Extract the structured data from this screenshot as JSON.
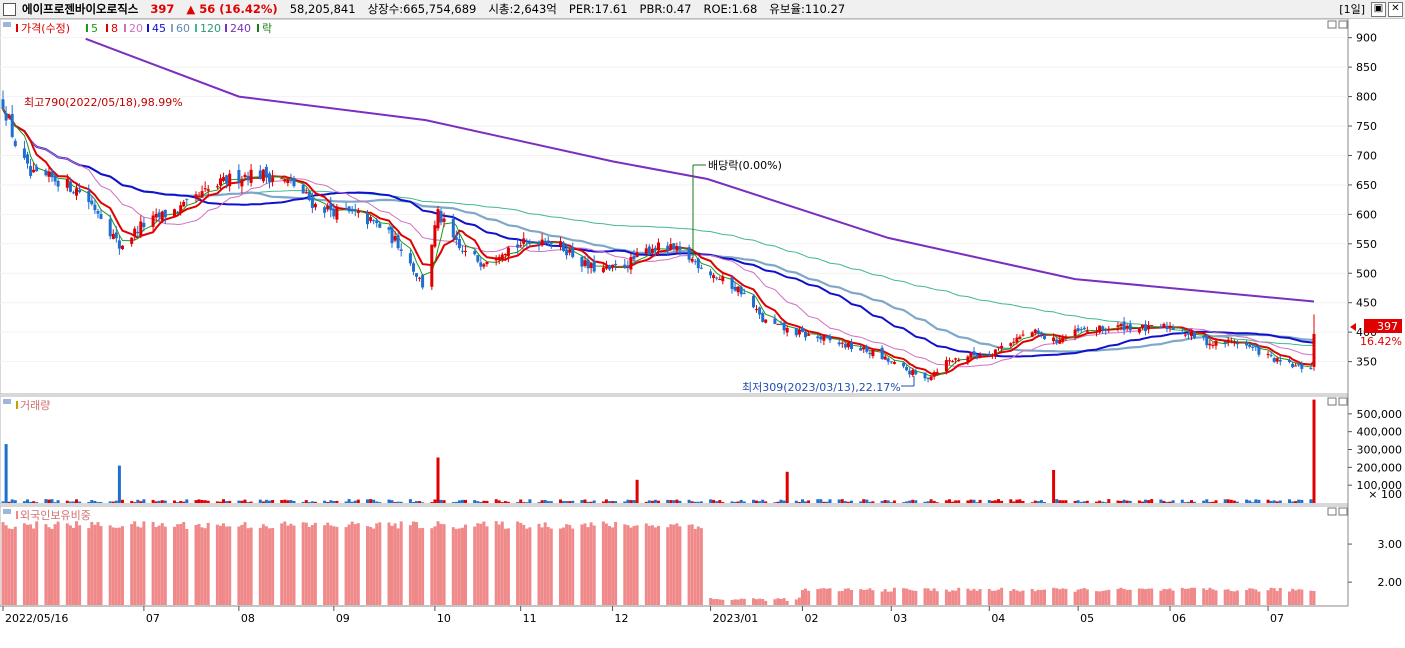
{
  "header": {
    "name": "에이프로젠바이오로직스",
    "price": "397",
    "change_arrow": "▲",
    "change": "56",
    "change_pct": "(16.42%)",
    "volume": "58,205,841",
    "listed": "상장수:665,754,689",
    "mcap": "시총:2,643억",
    "per": "PER:17.61",
    "pbr": "PBR:0.47",
    "roe": "ROE:1.68",
    "reserve": "유보율:110.27",
    "period_label": "[1일]",
    "btn_restore": "▣",
    "btn_close": "✕"
  },
  "colors": {
    "up": "#e00000",
    "down": "#1f6fd1",
    "ma5": "#1a9a1a",
    "ma8": "#e00000",
    "ma20": "#d070c0",
    "ma45": "#1111cc",
    "ma60": "#7fa8c8",
    "ma120": "#40b890",
    "ma240": "#7a2fbf",
    "foreign": "#f08a8a"
  },
  "price_panel": {
    "legend": [
      "가격(수정)",
      "5",
      "8",
      "20",
      "45",
      "60",
      "120",
      "240",
      "락"
    ],
    "high_note": "최고790(2022/05/18),98.99%",
    "low_note": "최저309(2023/03/13),22.17%",
    "dividend_note": "배당락(0.00%)",
    "current_label": "397",
    "current_pct": "16.42%"
  },
  "volume_panel": {
    "legend": "거래량",
    "unit_label": "× 100"
  },
  "foreign_panel": {
    "legend": "외국인보유비중"
  },
  "chart_data": [
    {
      "type": "candlestick",
      "title": "가격(수정)",
      "y_ticks": [
        350,
        400,
        450,
        500,
        550,
        600,
        650,
        700,
        750,
        800,
        850,
        900
      ],
      "ylim": [
        295,
        930
      ],
      "x_ticks": [
        "2022/05/16",
        "07",
        "08",
        "09",
        "10",
        "11",
        "12",
        "2023/01",
        "02",
        "03",
        "04",
        "05",
        "06",
        "07"
      ],
      "close_path": [
        [
          "2022/05/16",
          790
        ],
        [
          "2022/05/20",
          720
        ],
        [
          "2022/05/25",
          665
        ],
        [
          "2022/06/02",
          660
        ],
        [
          "2022/06/10",
          640
        ],
        [
          "2022/06/17",
          600
        ],
        [
          "2022/06/23",
          545
        ],
        [
          "2022/06/30",
          580
        ],
        [
          "2022/07/08",
          600
        ],
        [
          "2022/07/15",
          615
        ],
        [
          "2022/07/22",
          640
        ],
        [
          "2022/07/29",
          660
        ],
        [
          "2022/08/05",
          670
        ],
        [
          "2022/08/12",
          665
        ],
        [
          "2022/08/19",
          650
        ],
        [
          "2022/08/26",
          615
        ],
        [
          "2022/09/02",
          605
        ],
        [
          "2022/09/08",
          600
        ],
        [
          "2022/09/16",
          580
        ],
        [
          "2022/09/23",
          545
        ],
        [
          "2022/09/30",
          480
        ],
        [
          "2022/10/05",
          600
        ],
        [
          "2022/10/12",
          540
        ],
        [
          "2022/10/19",
          520
        ],
        [
          "2022/10/26",
          540
        ],
        [
          "2022/11/02",
          550
        ],
        [
          "2022/11/09",
          560
        ],
        [
          "2022/11/16",
          540
        ],
        [
          "2022/11/23",
          510
        ],
        [
          "2022/11/30",
          505
        ],
        [
          "2022/12/07",
          520
        ],
        [
          "2022/12/14",
          545
        ],
        [
          "2022/12/21",
          540
        ],
        [
          "2022/12/28",
          520
        ],
        [
          "2023/01/05",
          490
        ],
        [
          "2023/01/12",
          470
        ],
        [
          "2023/01/19",
          420
        ],
        [
          "2023/01/26",
          405
        ],
        [
          "2023/02/02",
          395
        ],
        [
          "2023/02/10",
          385
        ],
        [
          "2023/02/17",
          375
        ],
        [
          "2023/02/24",
          365
        ],
        [
          "2023/03/03",
          345
        ],
        [
          "2023/03/13",
          320
        ],
        [
          "2023/03/20",
          350
        ],
        [
          "2023/03/27",
          360
        ],
        [
          "2023/04/03",
          365
        ],
        [
          "2023/04/10",
          385
        ],
        [
          "2023/04/17",
          400
        ],
        [
          "2023/04/24",
          385
        ],
        [
          "2023/05/02",
          400
        ],
        [
          "2023/05/10",
          405
        ],
        [
          "2023/05/17",
          410
        ],
        [
          "2023/05/25",
          405
        ],
        [
          "2023/06/01",
          410
        ],
        [
          "2023/06/08",
          395
        ],
        [
          "2023/06/15",
          380
        ],
        [
          "2023/06/22",
          385
        ],
        [
          "2023/06/29",
          370
        ],
        [
          "2023/07/06",
          350
        ],
        [
          "2023/07/13",
          340
        ],
        [
          "2023/07/17",
          341
        ],
        [
          "2023/07/18",
          397
        ]
      ],
      "ma240_path": [
        [
          "2022/06/12",
          898
        ],
        [
          "2022/08/01",
          800
        ],
        [
          "2022/10/01",
          760
        ],
        [
          "2022/12/01",
          690
        ],
        [
          "2023/01/01",
          660
        ],
        [
          "2023/03/01",
          560
        ],
        [
          "2023/05/01",
          490
        ],
        [
          "2023/07/18",
          452
        ]
      ],
      "annotations": {
        "high": {
          "date": "2022/05/18",
          "value": 790,
          "pct": "98.99%"
        },
        "low": {
          "date": "2023/03/13",
          "value": 309,
          "pct": "22.17%"
        }
      }
    },
    {
      "type": "bar",
      "title": "거래량",
      "unit": "× 100",
      "y_ticks": [
        100000,
        200000,
        300000,
        400000,
        500000
      ],
      "ylim": [
        0,
        600000
      ],
      "spikes": [
        {
          "date": "2022/05/17",
          "value": 330000
        },
        {
          "date": "2022/06/23",
          "value": 210000
        },
        {
          "date": "2022/10/05",
          "value": 255000
        },
        {
          "date": "2022/12/09",
          "value": 130000
        },
        {
          "date": "2023/01/27",
          "value": 175000
        },
        {
          "date": "2023/04/24",
          "value": 185000
        },
        {
          "date": "2023/07/18",
          "value": 580000
        }
      ]
    },
    {
      "type": "bar",
      "title": "외국인보유비중",
      "y_ticks": [
        2.0,
        3.0
      ],
      "ylim": [
        1.4,
        4.0
      ],
      "segments": [
        {
          "from": "2022/05/16",
          "to": "2022/12/30",
          "value": 3.5
        },
        {
          "from": "2023/01/02",
          "to": "2023/01/31",
          "value": 1.55
        },
        {
          "from": "2023/02/01",
          "to": "2023/07/18",
          "value": 1.8
        }
      ]
    }
  ]
}
